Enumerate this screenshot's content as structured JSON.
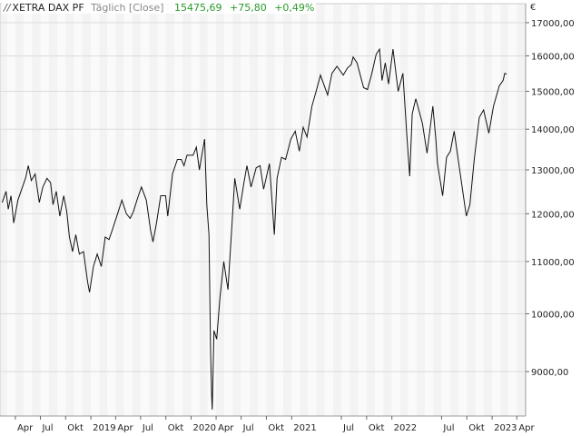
{
  "header": {
    "logo": "//",
    "title": "XETRA DAX PF",
    "period": "Täglich [Close]",
    "last": "15475,69",
    "change": "+75,80",
    "change_pct": "+0,49%"
  },
  "currency": "€",
  "colors": {
    "line": "#111111",
    "up": "#2a9a2a",
    "band_a": "#f3f3f3",
    "band_b": "#fafafa",
    "grid": "#dcdcdc"
  },
  "chart_data": {
    "type": "line",
    "title": "",
    "xlabel": "",
    "ylabel": "",
    "y_scale": "log",
    "ylim": [
      8300,
      17600
    ],
    "grid": true,
    "y_ticks": [
      {
        "v": 9000,
        "label": "9000,00"
      },
      {
        "v": 10000,
        "label": "10000,00"
      },
      {
        "v": 11000,
        "label": "11000,00"
      },
      {
        "v": 12000,
        "label": "12000,00"
      },
      {
        "v": 13000,
        "label": "13000,00"
      },
      {
        "v": 14000,
        "label": "14000,00"
      },
      {
        "v": 15000,
        "label": "15000,00"
      },
      {
        "v": 16000,
        "label": "16000,00"
      },
      {
        "v": 17000,
        "label": "17000,00"
      }
    ],
    "x_ticks": [
      {
        "date": "2018-04",
        "label": "Apr"
      },
      {
        "date": "2018-07",
        "label": "Jul"
      },
      {
        "date": "2018-10",
        "label": "Okt"
      },
      {
        "date": "2019-01",
        "label": "2019"
      },
      {
        "date": "2019-04",
        "label": "Apr"
      },
      {
        "date": "2019-07",
        "label": "Jul"
      },
      {
        "date": "2019-10",
        "label": "Okt"
      },
      {
        "date": "2020-01",
        "label": "2020"
      },
      {
        "date": "2020-04",
        "label": "Apr"
      },
      {
        "date": "2020-07",
        "label": "Jul"
      },
      {
        "date": "2020-10",
        "label": "Okt"
      },
      {
        "date": "2021-01",
        "label": "2021"
      },
      {
        "date": "2021-07",
        "label": "Jul"
      },
      {
        "date": "2021-10",
        "label": "Okt"
      },
      {
        "date": "2022-01",
        "label": "2022"
      },
      {
        "date": "2022-07",
        "label": "Jul"
      },
      {
        "date": "2022-10",
        "label": "Okt"
      },
      {
        "date": "2023-01",
        "label": "2023"
      },
      {
        "date": "2023-04",
        "label": "Apr"
      }
    ],
    "series": [
      {
        "points": [
          [
            "2018-02-12",
            12250
          ],
          [
            "2018-02-26",
            12500
          ],
          [
            "2018-03-06",
            12100
          ],
          [
            "2018-03-16",
            12400
          ],
          [
            "2018-03-26",
            11800
          ],
          [
            "2018-04-10",
            12300
          ],
          [
            "2018-04-24",
            12550
          ],
          [
            "2018-05-08",
            12800
          ],
          [
            "2018-05-18",
            13100
          ],
          [
            "2018-05-29",
            12750
          ],
          [
            "2018-06-12",
            12900
          ],
          [
            "2018-06-27",
            12250
          ],
          [
            "2018-07-10",
            12600
          ],
          [
            "2018-07-25",
            12800
          ],
          [
            "2018-08-07",
            12700
          ],
          [
            "2018-08-16",
            12200
          ],
          [
            "2018-08-28",
            12500
          ],
          [
            "2018-09-10",
            11950
          ],
          [
            "2018-09-24",
            12400
          ],
          [
            "2018-10-05",
            12050
          ],
          [
            "2018-10-15",
            11500
          ],
          [
            "2018-10-26",
            11200
          ],
          [
            "2018-11-07",
            11550
          ],
          [
            "2018-11-20",
            11150
          ],
          [
            "2018-12-05",
            11200
          ],
          [
            "2018-12-20",
            10600
          ],
          [
            "2018-12-27",
            10400
          ],
          [
            "2019-01-10",
            10900
          ],
          [
            "2019-01-24",
            11150
          ],
          [
            "2019-02-08",
            10900
          ],
          [
            "2019-02-22",
            11500
          ],
          [
            "2019-03-08",
            11450
          ],
          [
            "2019-03-20",
            11650
          ],
          [
            "2019-04-08",
            12000
          ],
          [
            "2019-04-24",
            12300
          ],
          [
            "2019-05-10",
            12000
          ],
          [
            "2019-05-24",
            11900
          ],
          [
            "2019-06-05",
            12050
          ],
          [
            "2019-06-20",
            12350
          ],
          [
            "2019-07-04",
            12600
          ],
          [
            "2019-07-22",
            12300
          ],
          [
            "2019-08-06",
            11650
          ],
          [
            "2019-08-15",
            11400
          ],
          [
            "2019-08-28",
            11800
          ],
          [
            "2019-09-12",
            12400
          ],
          [
            "2019-09-30",
            12400
          ],
          [
            "2019-10-08",
            11950
          ],
          [
            "2019-10-25",
            12900
          ],
          [
            "2019-11-12",
            13250
          ],
          [
            "2019-11-26",
            13250
          ],
          [
            "2019-12-06",
            13100
          ],
          [
            "2019-12-17",
            13350
          ],
          [
            "2020-01-08",
            13350
          ],
          [
            "2020-01-20",
            13550
          ],
          [
            "2020-01-31",
            13000
          ],
          [
            "2020-02-19",
            13750
          ],
          [
            "2020-02-27",
            12200
          ],
          [
            "2020-03-06",
            11550
          ],
          [
            "2020-03-12",
            9300
          ],
          [
            "2020-03-16",
            8600
          ],
          [
            "2020-03-18",
            8400
          ],
          [
            "2020-03-24",
            9700
          ],
          [
            "2020-04-03",
            9550
          ],
          [
            "2020-04-15",
            10300
          ],
          [
            "2020-04-29",
            11000
          ],
          [
            "2020-05-14",
            10450
          ],
          [
            "2020-05-27",
            11600
          ],
          [
            "2020-06-08",
            12800
          ],
          [
            "2020-06-26",
            12100
          ],
          [
            "2020-07-10",
            12650
          ],
          [
            "2020-07-22",
            13100
          ],
          [
            "2020-08-06",
            12600
          ],
          [
            "2020-08-25",
            13050
          ],
          [
            "2020-09-08",
            13100
          ],
          [
            "2020-09-21",
            12550
          ],
          [
            "2020-10-12",
            13150
          ],
          [
            "2020-10-30",
            11550
          ],
          [
            "2020-11-09",
            12800
          ],
          [
            "2020-11-25",
            13300
          ],
          [
            "2020-12-10",
            13250
          ],
          [
            "2020-12-29",
            13750
          ],
          [
            "2021-01-14",
            13950
          ],
          [
            "2021-01-29",
            13450
          ],
          [
            "2021-02-12",
            14050
          ],
          [
            "2021-02-26",
            13800
          ],
          [
            "2021-03-16",
            14600
          ],
          [
            "2021-03-31",
            15000
          ],
          [
            "2021-04-16",
            15450
          ],
          [
            "2021-05-12",
            14900
          ],
          [
            "2021-05-28",
            15500
          ],
          [
            "2021-06-15",
            15700
          ],
          [
            "2021-07-08",
            15450
          ],
          [
            "2021-07-23",
            15650
          ],
          [
            "2021-08-06",
            15750
          ],
          [
            "2021-08-13",
            15970
          ],
          [
            "2021-08-27",
            15800
          ],
          [
            "2021-09-20",
            15100
          ],
          [
            "2021-10-04",
            15050
          ],
          [
            "2021-10-20",
            15500
          ],
          [
            "2021-11-05",
            16050
          ],
          [
            "2021-11-17",
            16200
          ],
          [
            "2021-11-26",
            15300
          ],
          [
            "2021-12-08",
            15800
          ],
          [
            "2021-12-20",
            15200
          ],
          [
            "2022-01-05",
            16200
          ],
          [
            "2022-01-24",
            15000
          ],
          [
            "2022-02-10",
            15500
          ],
          [
            "2022-02-24",
            13900
          ],
          [
            "2022-03-07",
            12850
          ],
          [
            "2022-03-16",
            14400
          ],
          [
            "2022-03-29",
            14800
          ],
          [
            "2022-04-22",
            14150
          ],
          [
            "2022-05-09",
            13400
          ],
          [
            "2022-05-30",
            14600
          ],
          [
            "2022-06-10",
            13750
          ],
          [
            "2022-06-16",
            13150
          ],
          [
            "2022-07-05",
            12400
          ],
          [
            "2022-07-19",
            13300
          ],
          [
            "2022-08-02",
            13450
          ],
          [
            "2022-08-16",
            13950
          ],
          [
            "2022-09-07",
            12900
          ],
          [
            "2022-09-29",
            11950
          ],
          [
            "2022-10-12",
            12200
          ],
          [
            "2022-10-28",
            13250
          ],
          [
            "2022-11-15",
            14300
          ],
          [
            "2022-12-01",
            14500
          ],
          [
            "2022-12-20",
            13900
          ],
          [
            "2023-01-06",
            14600
          ],
          [
            "2023-01-27",
            15150
          ],
          [
            "2023-02-10",
            15300
          ],
          [
            "2023-02-16",
            15500
          ],
          [
            "2023-02-23",
            15476
          ]
        ]
      }
    ]
  }
}
